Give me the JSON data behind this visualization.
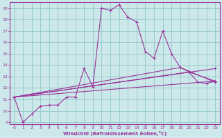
{
  "xlabel": "Windchill (Refroidissement éolien,°C)",
  "xlim": [
    -0.5,
    23.5
  ],
  "ylim": [
    8.8,
    19.5
  ],
  "yticks": [
    9,
    10,
    11,
    12,
    13,
    14,
    15,
    16,
    17,
    18,
    19
  ],
  "xticks": [
    0,
    1,
    2,
    3,
    4,
    5,
    6,
    7,
    8,
    9,
    10,
    11,
    12,
    13,
    14,
    15,
    16,
    17,
    18,
    19,
    20,
    21,
    22,
    23
  ],
  "background_color": "#cce8ea",
  "grid_color": "#99cccc",
  "line_color": "#993399",
  "curve1_x": [
    0,
    1,
    2,
    3,
    4,
    5,
    6,
    7,
    8,
    9,
    10,
    11,
    12,
    13,
    14,
    15,
    16,
    17,
    18,
    19,
    20,
    21,
    22,
    23
  ],
  "curve1_y": [
    11.2,
    9.0,
    9.7,
    10.4,
    10.5,
    10.5,
    11.2,
    11.2,
    13.7,
    12.1,
    19.0,
    18.8,
    19.3,
    18.2,
    17.8,
    15.2,
    14.6,
    17.0,
    15.0,
    13.8,
    13.4,
    12.5,
    12.4,
    12.6
  ],
  "curve2_x": [
    0,
    23
  ],
  "curve2_y": [
    11.2,
    13.7
  ],
  "curve3_x": [
    0,
    19,
    23
  ],
  "curve3_y": [
    11.2,
    13.8,
    12.5
  ],
  "curve4_x": [
    0,
    20,
    23
  ],
  "curve4_y": [
    11.2,
    13.4,
    12.6
  ],
  "curve5_x": [
    0,
    23
  ],
  "curve5_y": [
    11.2,
    12.6
  ]
}
